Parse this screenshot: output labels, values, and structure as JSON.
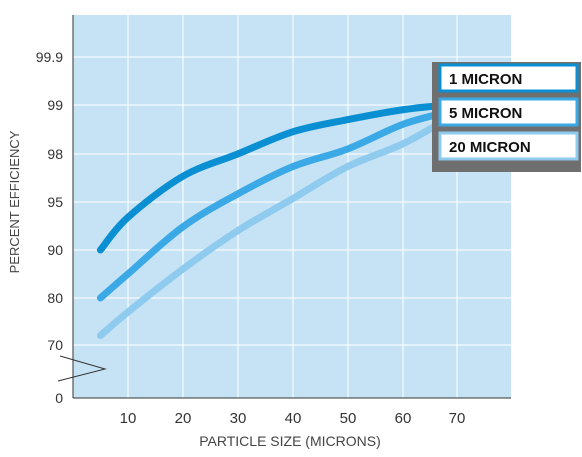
{
  "chart_data": {
    "type": "line",
    "xlabel": "PARTICLE SIZE (MICRONS)",
    "ylabel": "PERCENT EFFICIENCY",
    "x_ticks": [
      10,
      20,
      30,
      40,
      50,
      60,
      70
    ],
    "y_tick_labels": [
      "0",
      "70",
      "80",
      "90",
      "95",
      "98",
      "99",
      "99.9"
    ],
    "y_scale": "non-linear (broken axis)",
    "grid": true,
    "legend_position": "top-right",
    "colors": {
      "plot_background": "#c6e3f6",
      "grid": "#ffffff",
      "legend_frame": "#6f6f6f"
    },
    "series": [
      {
        "name": "1 MICRON",
        "color": "#0a8fd2",
        "x": [
          5,
          10,
          20,
          30,
          40,
          50,
          60,
          68
        ],
        "y": [
          90,
          93.4,
          96.6,
          98.0,
          98.45,
          98.7,
          98.9,
          99.0
        ]
      },
      {
        "name": "5 MICRON",
        "color": "#3ba9e6",
        "x": [
          5,
          10,
          20,
          30,
          40,
          50,
          60,
          68
        ],
        "y": [
          80,
          85,
          92.4,
          95.5,
          97.2,
          98.1,
          98.6,
          98.85
        ]
      },
      {
        "name": "20 MICRON",
        "color": "#8fcaef",
        "x": [
          5,
          10,
          20,
          30,
          40,
          50,
          60,
          68
        ],
        "y": [
          72,
          77,
          86,
          92,
          95.2,
          97.2,
          98.2,
          98.7
        ]
      }
    ]
  }
}
